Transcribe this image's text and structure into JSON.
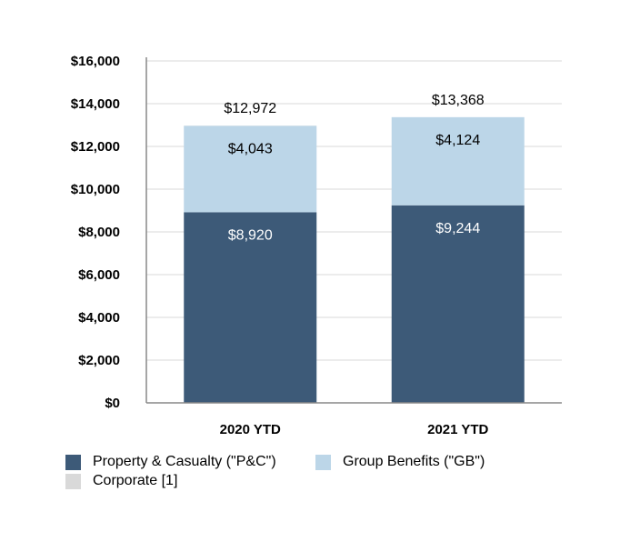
{
  "chart_data": {
    "type": "bar",
    "stacked": true,
    "categories": [
      "2020 YTD",
      "2021 YTD"
    ],
    "series": [
      {
        "name": "Property & Casualty (\"P&C\")",
        "values": [
          8920,
          9244
        ],
        "value_labels": [
          "$8,920",
          "$9,244"
        ],
        "color": "#3d5a78",
        "label_color": "#ffffff"
      },
      {
        "name": "Group Benefits (\"GB\")",
        "values": [
          4043,
          4124
        ],
        "value_labels": [
          "$4,043",
          "$4,124"
        ],
        "color": "#bcd6e8",
        "label_color": "#000000"
      },
      {
        "name": "Corporate [1]",
        "values": [
          9,
          0
        ],
        "value_labels": [
          "",
          ""
        ],
        "color": "#d9d9d9",
        "label_color": "#000000"
      }
    ],
    "totals": [
      12972,
      13368
    ],
    "total_labels": [
      "$12,972",
      "$13,368"
    ],
    "ylim": [
      0,
      16000
    ],
    "yticks": [
      0,
      2000,
      4000,
      6000,
      8000,
      10000,
      12000,
      14000,
      16000
    ],
    "ytick_labels": [
      "$0",
      "$2,000",
      "$4,000",
      "$6,000",
      "$8,000",
      "$10,000",
      "$12,000",
      "$14,000",
      "$16,000"
    ],
    "grid": true,
    "legend_position": "bottom-left"
  }
}
